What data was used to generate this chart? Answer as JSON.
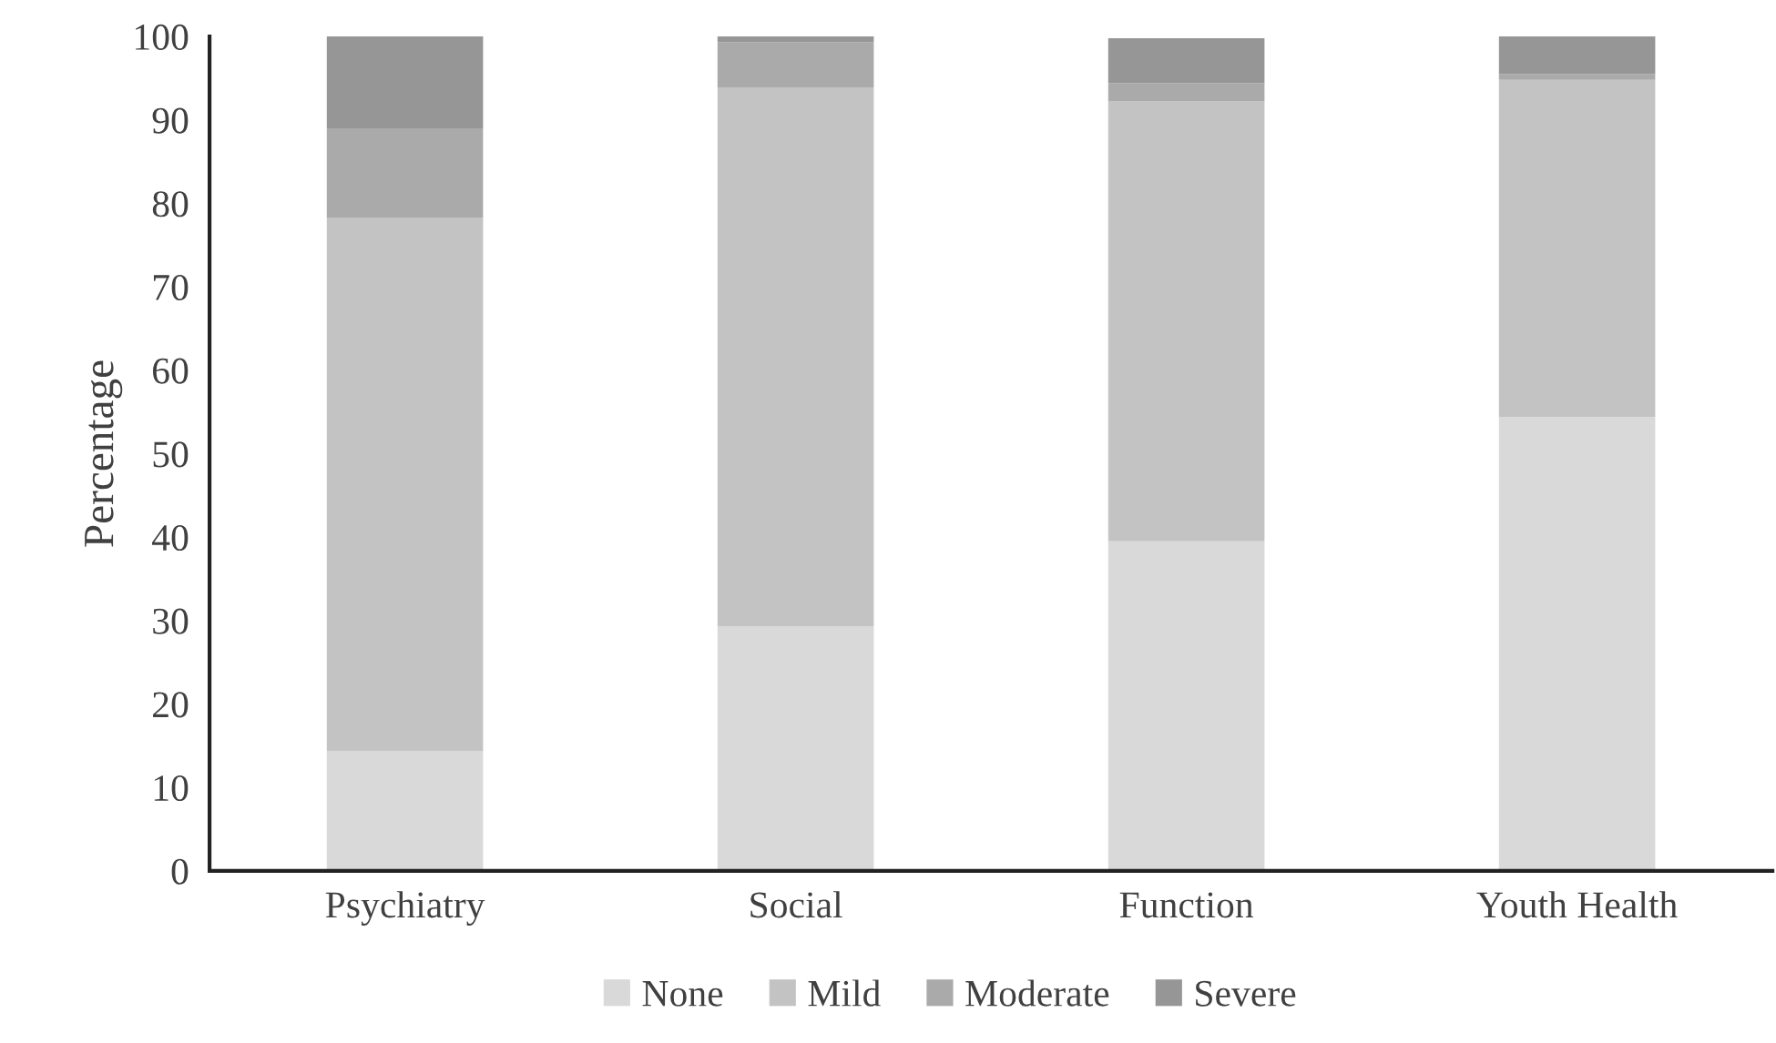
{
  "chart_data": {
    "type": "bar",
    "stacked": true,
    "ylabel": "Percentage",
    "categories": [
      "Psychiatry",
      "Social",
      "Function",
      "Youth Health"
    ],
    "series": [
      {
        "name": "None",
        "color": "#d9d9d9",
        "values": [
          14.4,
          29.3,
          39.5,
          54.4
        ]
      },
      {
        "name": "Mild",
        "color": "#c3c3c3",
        "values": [
          63.9,
          64.6,
          52.7,
          40.4
        ]
      },
      {
        "name": "Moderate",
        "color": "#aaaaaa",
        "values": [
          10.7,
          5.4,
          2.2,
          0.7
        ]
      },
      {
        "name": "Severe",
        "color": "#969696",
        "values": [
          11.0,
          0.7,
          5.4,
          4.5
        ]
      }
    ],
    "ylim": [
      0,
      100
    ],
    "yticks": [
      0,
      10,
      20,
      30,
      40,
      50,
      60,
      70,
      80,
      90,
      100
    ],
    "grid": false,
    "legend": "bottom"
  }
}
